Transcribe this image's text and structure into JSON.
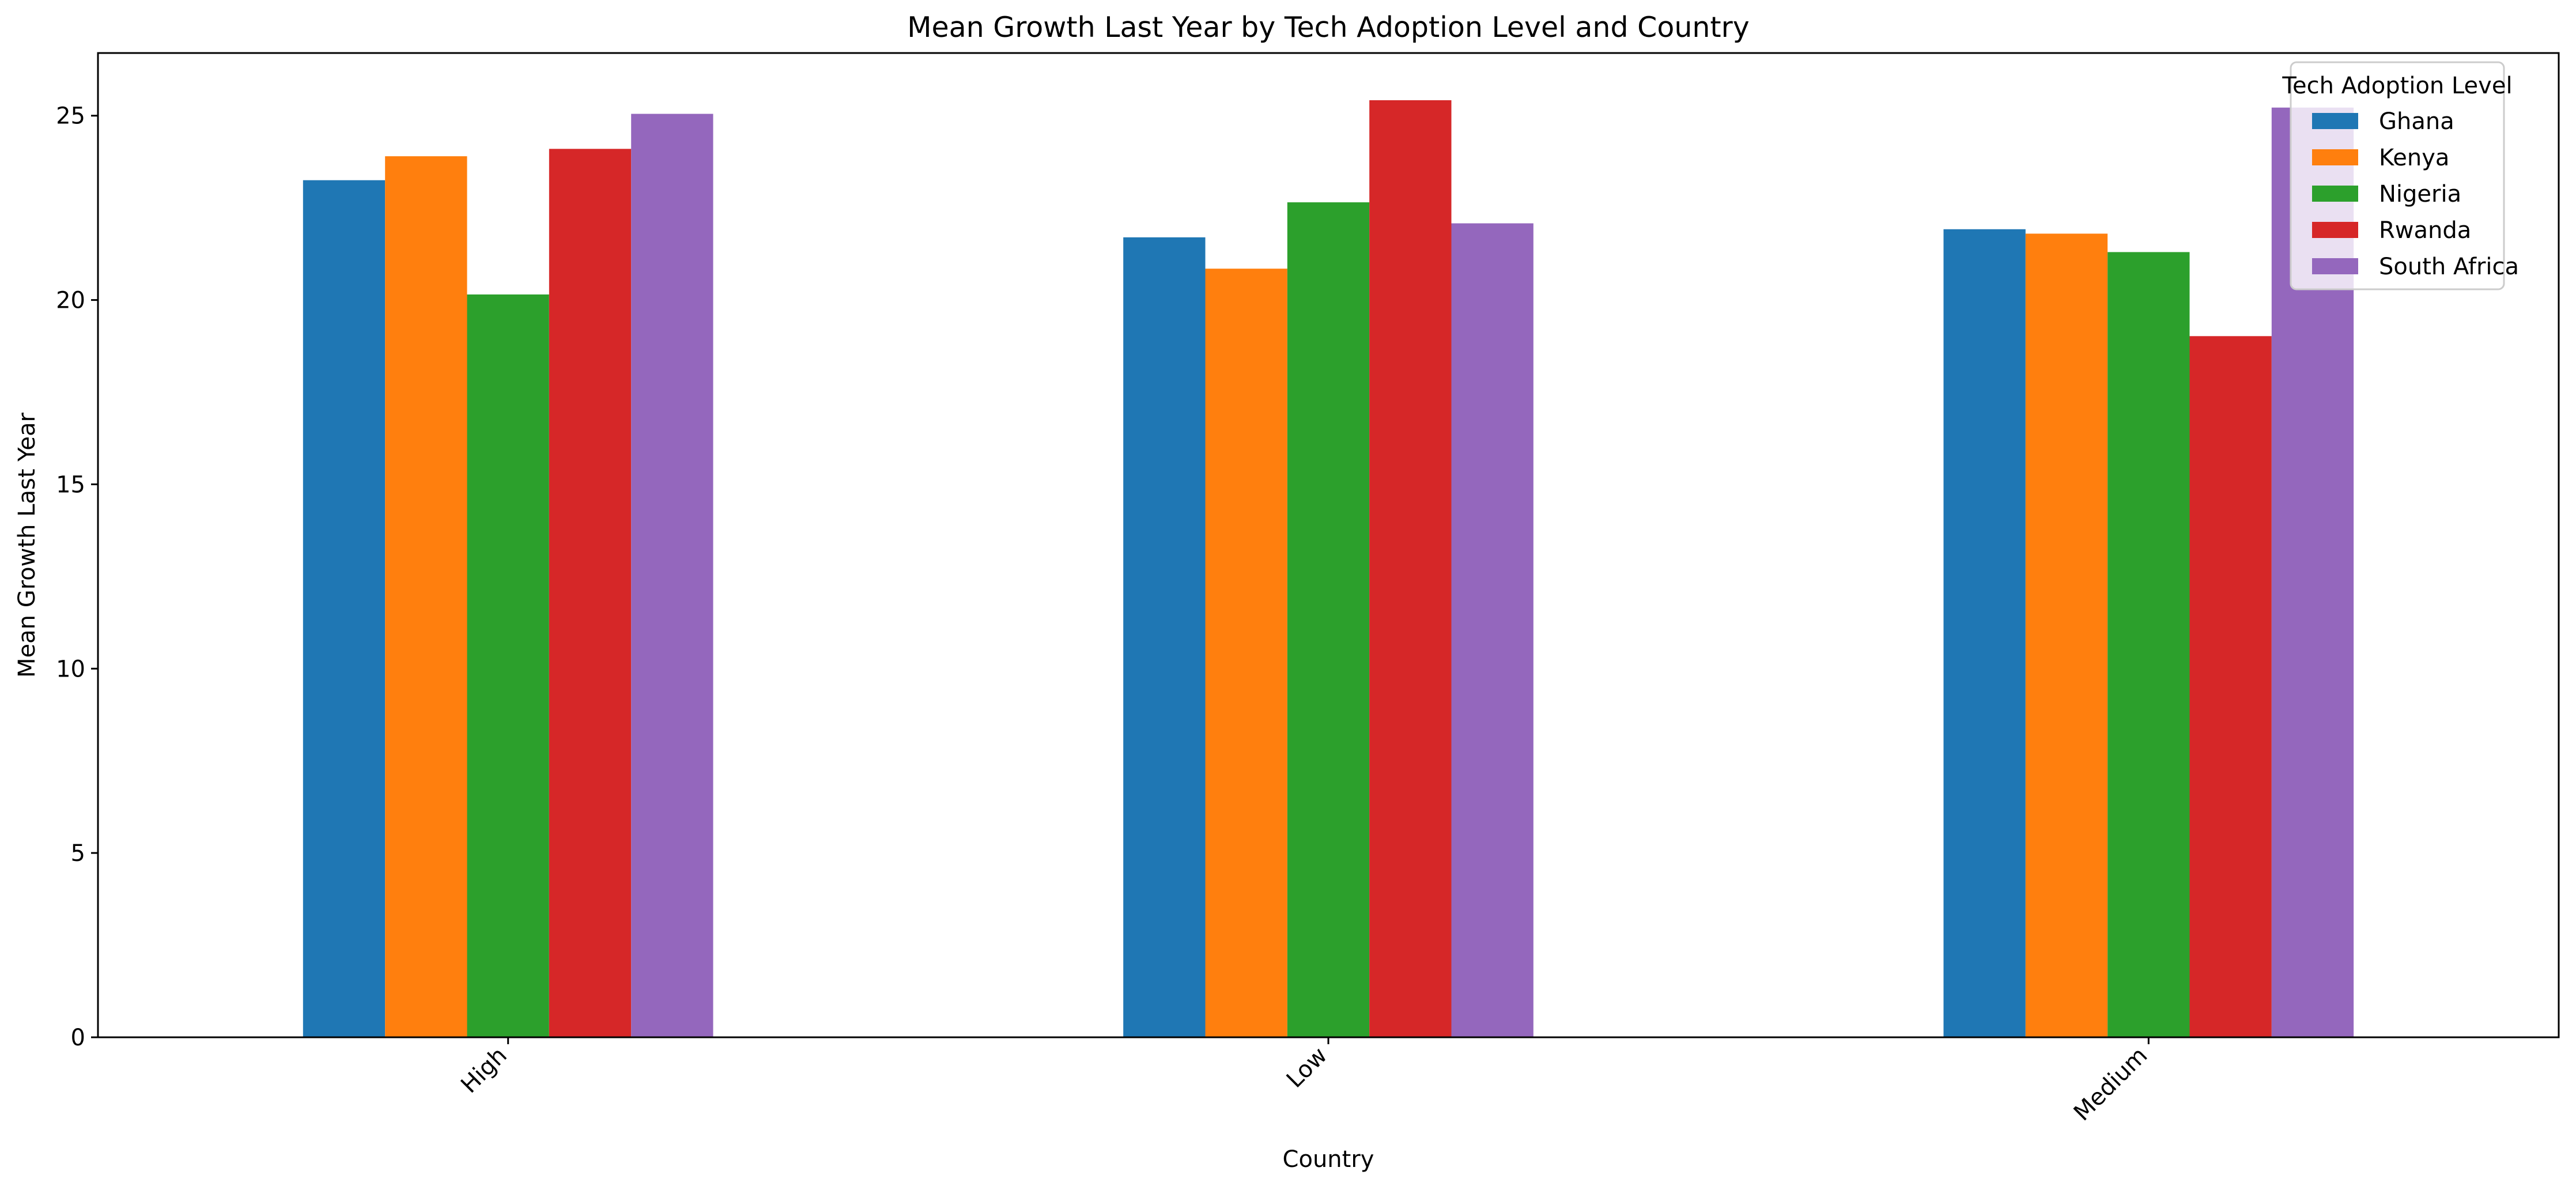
{
  "chart_data": {
    "type": "bar",
    "title": "Mean Growth Last Year by Tech Adoption Level and Country",
    "xlabel": "Country",
    "ylabel": "Mean Growth Last Year",
    "categories": [
      "High",
      "Low",
      "Medium"
    ],
    "ylim": [
      0,
      26.7
    ],
    "yticks": [
      0,
      5,
      10,
      15,
      20,
      25
    ],
    "grid": false,
    "legend": {
      "title": "Tech Adoption Level",
      "placement": "top-right"
    },
    "series": [
      {
        "name": "Ghana",
        "color": "#1f77b4",
        "values": [
          23.25,
          21.7,
          21.92
        ]
      },
      {
        "name": "Kenya",
        "color": "#ff7f0e",
        "values": [
          23.9,
          20.85,
          21.8
        ]
      },
      {
        "name": "Nigeria",
        "color": "#2ca02c",
        "values": [
          20.15,
          22.65,
          21.3
        ]
      },
      {
        "name": "Rwanda",
        "color": "#d62728",
        "values": [
          24.1,
          25.42,
          19.02
        ]
      },
      {
        "name": "South Africa",
        "color": "#9467bd",
        "values": [
          25.05,
          22.08,
          25.22
        ]
      }
    ]
  }
}
